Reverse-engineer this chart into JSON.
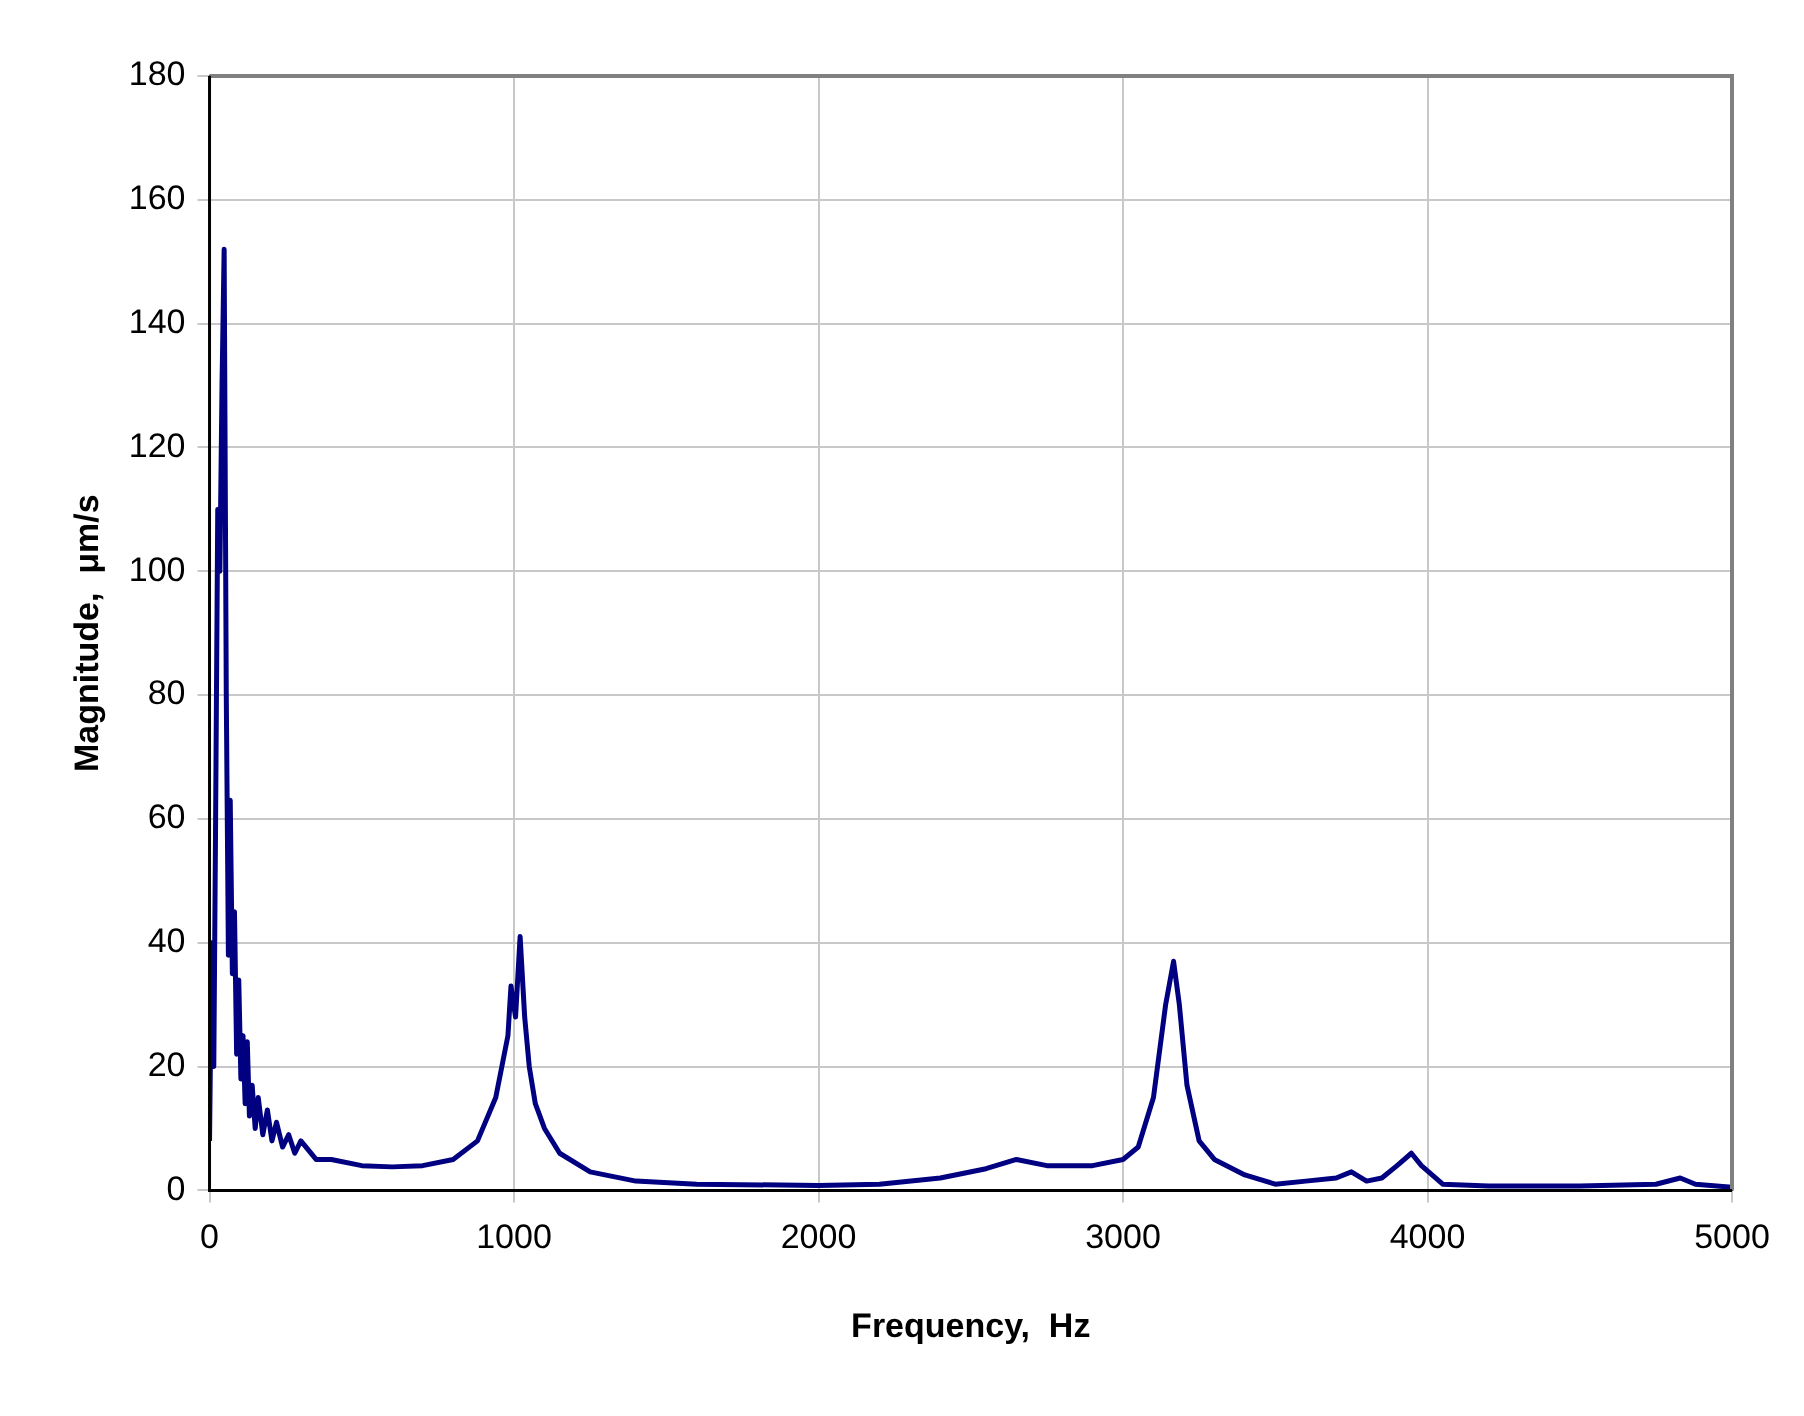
{
  "chart_data": {
    "type": "line",
    "xlabel": "Frequency,  Hz",
    "ylabel": "Magnitude,  μm/s",
    "x": [
      0,
      7,
      14,
      20,
      27,
      34,
      41,
      48,
      55,
      62,
      68,
      75,
      82,
      89,
      96,
      103,
      110,
      117,
      124,
      131,
      140,
      150,
      160,
      175,
      190,
      205,
      220,
      240,
      260,
      280,
      300,
      350,
      400,
      500,
      600,
      700,
      800,
      880,
      940,
      980,
      990,
      1005,
      1020,
      1035,
      1050,
      1070,
      1100,
      1150,
      1250,
      1400,
      1600,
      2000,
      2200,
      2400,
      2550,
      2650,
      2750,
      2900,
      3000,
      3050,
      3100,
      3140,
      3166,
      3185,
      3210,
      3250,
      3300,
      3400,
      3500,
      3600,
      3700,
      3750,
      3800,
      3850,
      3900,
      3947,
      3980,
      4050,
      4200,
      4500,
      4750,
      4830,
      4880,
      5000
    ],
    "series": [
      {
        "color": "#000080",
        "values": [
          8,
          40,
          20,
          60,
          110,
          100,
          130,
          152,
          80,
          38,
          63,
          35,
          45,
          22,
          34,
          18,
          25,
          14,
          24,
          12,
          17,
          10,
          15,
          9,
          13,
          8,
          11,
          7,
          9,
          6,
          8,
          5,
          5,
          4,
          3.8,
          4,
          5,
          8,
          15,
          25,
          33,
          28,
          41,
          28,
          20,
          14,
          10,
          6,
          3,
          1.5,
          1,
          0.8,
          1,
          2,
          3.5,
          5,
          4,
          4,
          5,
          7,
          15,
          30,
          37,
          30,
          17,
          8,
          5,
          2.5,
          1,
          1.5,
          2,
          3,
          1.5,
          2,
          4,
          6,
          4,
          1,
          0.7,
          0.7,
          1,
          2,
          1,
          0.5
        ]
      }
    ],
    "xlim": [
      0,
      5000
    ],
    "xticks": [
      0,
      1000,
      2000,
      3000,
      4000,
      5000
    ],
    "ylim": [
      0,
      180
    ],
    "yticks": [
      0,
      20,
      40,
      60,
      80,
      100,
      120,
      140,
      160,
      180
    ],
    "grid": true,
    "marker": "none",
    "line_style": "solid",
    "legend": false
  }
}
